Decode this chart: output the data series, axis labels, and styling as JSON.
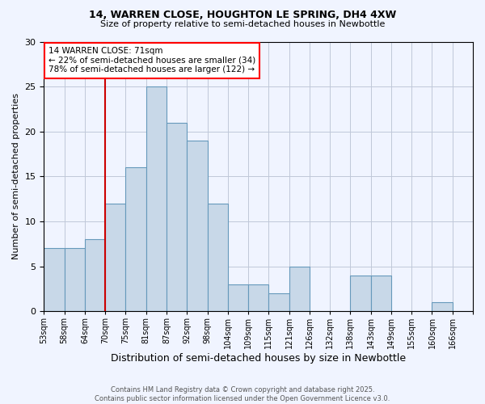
{
  "title_line1": "14, WARREN CLOSE, HOUGHTON LE SPRING, DH4 4XW",
  "title_line2": "Size of property relative to semi-detached houses in Newbottle",
  "xlabel": "Distribution of semi-detached houses by size in Newbottle",
  "ylabel": "Number of semi-detached properties",
  "footer_line1": "Contains HM Land Registry data © Crown copyright and database right 2025.",
  "footer_line2": "Contains public sector information licensed under the Open Government Licence v3.0.",
  "annotation_title": "14 WARREN CLOSE: 71sqm",
  "annotation_line1": "← 22% of semi-detached houses are smaller (34)",
  "annotation_line2": "78% of semi-detached houses are larger (122) →",
  "bin_labels": [
    "53sqm",
    "58sqm",
    "64sqm",
    "70sqm",
    "75sqm",
    "81sqm",
    "87sqm",
    "92sqm",
    "98sqm",
    "104sqm",
    "109sqm",
    "115sqm",
    "121sqm",
    "126sqm",
    "132sqm",
    "138sqm",
    "143sqm",
    "149sqm",
    "155sqm",
    "160sqm",
    "166sqm"
  ],
  "counts": [
    7,
    7,
    8,
    12,
    16,
    25,
    21,
    19,
    12,
    3,
    3,
    2,
    5,
    0,
    0,
    4,
    4,
    0,
    0,
    1,
    0
  ],
  "vline_index": 3,
  "bar_color": "#c8d8e8",
  "bar_edge_color": "#6699bb",
  "vline_color": "#cc0000",
  "ylim": [
    0,
    30
  ],
  "yticks": [
    0,
    5,
    10,
    15,
    20,
    25,
    30
  ],
  "grid_color": "#c0c8d8",
  "background_color": "#f0f4ff"
}
